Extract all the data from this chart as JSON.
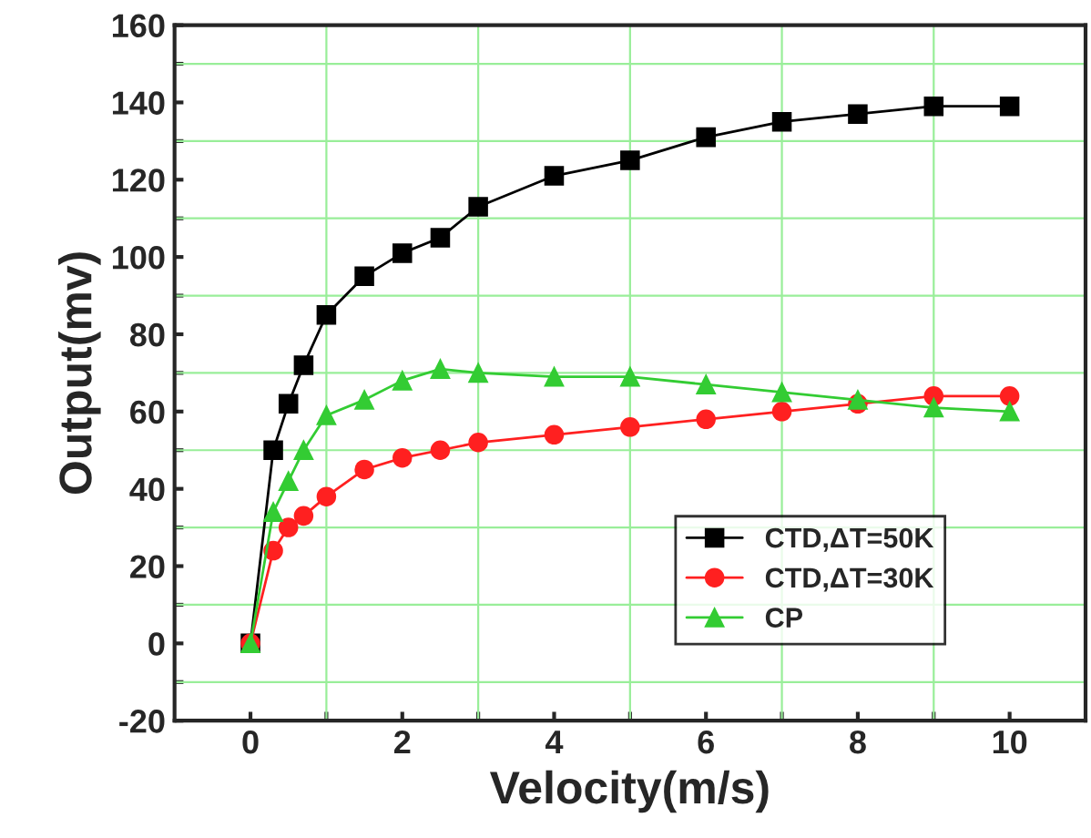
{
  "chart_data": {
    "type": "line",
    "xlabel": "Velocity(m/s)",
    "ylabel": "Output(mv)",
    "x": [
      0,
      0.3,
      0.5,
      0.7,
      1,
      1.5,
      2,
      2.5,
      3,
      4,
      5,
      6,
      7,
      8,
      9,
      10
    ],
    "series": [
      {
        "name": "CTD,ΔT=50K",
        "color": "#000000",
        "marker": "square",
        "values": [
          0,
          50,
          62,
          72,
          85,
          95,
          101,
          105,
          113,
          121,
          125,
          131,
          135,
          137,
          139,
          139
        ]
      },
      {
        "name": "CTD,ΔT=30K",
        "color": "#ff2020",
        "marker": "circle",
        "values": [
          0,
          24,
          30,
          33,
          38,
          45,
          48,
          50,
          52,
          54,
          56,
          58,
          60,
          62,
          64,
          64
        ]
      },
      {
        "name": "CP",
        "color": "#33cc33",
        "marker": "triangle",
        "values": [
          0,
          34,
          42,
          50,
          59,
          63,
          68,
          71,
          70,
          69,
          69,
          67,
          65,
          63,
          61,
          60
        ]
      }
    ],
    "xlim": [
      -1,
      11
    ],
    "xticks": [
      0,
      {
        "value": 1,
        "label": null
      },
      2,
      {
        "value": 3,
        "label": null
      },
      4,
      {
        "value": 5,
        "label": null
      },
      6,
      {
        "value": 7,
        "label": null
      },
      8,
      {
        "value": 9,
        "label": null
      },
      10
    ],
    "ylim": [
      -20,
      160
    ],
    "yticks": [
      -20,
      {
        "value": -10,
        "label": null
      },
      0,
      {
        "value": 10,
        "label": null
      },
      20,
      {
        "value": 30,
        "label": null
      },
      40,
      {
        "value": 50,
        "label": null
      },
      60,
      {
        "value": 70,
        "label": null
      },
      80,
      {
        "value": 90,
        "label": null
      },
      100,
      {
        "value": 110,
        "label": null
      },
      120,
      {
        "value": 130,
        "label": null
      },
      140,
      {
        "value": 150,
        "label": null
      },
      160
    ],
    "grid": true,
    "legend": "bottom right"
  }
}
